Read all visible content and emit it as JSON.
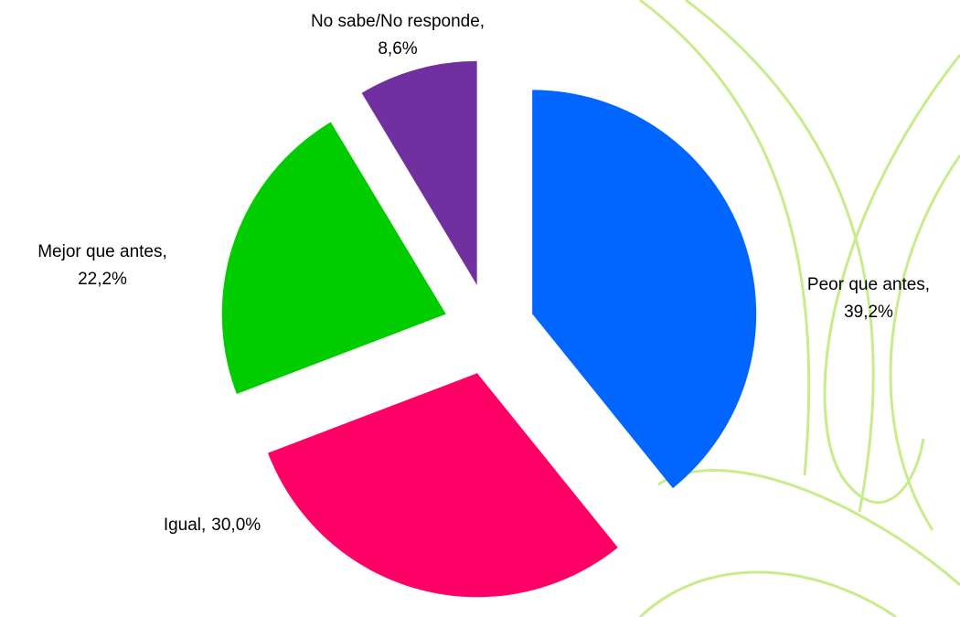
{
  "chart_data": {
    "type": "pie",
    "categories": [
      "Peor que antes,",
      "Igual,",
      "Mejor que antes,",
      "No sabe/No responde,"
    ],
    "values": [
      39.2,
      30.0,
      22.2,
      8.6
    ],
    "value_labels": [
      "39,2%",
      "30,0%",
      "22,2%",
      "8,6%"
    ],
    "colors": [
      "#0066ff",
      "#ff0066",
      "#00cc00",
      "#7030a0"
    ]
  }
}
